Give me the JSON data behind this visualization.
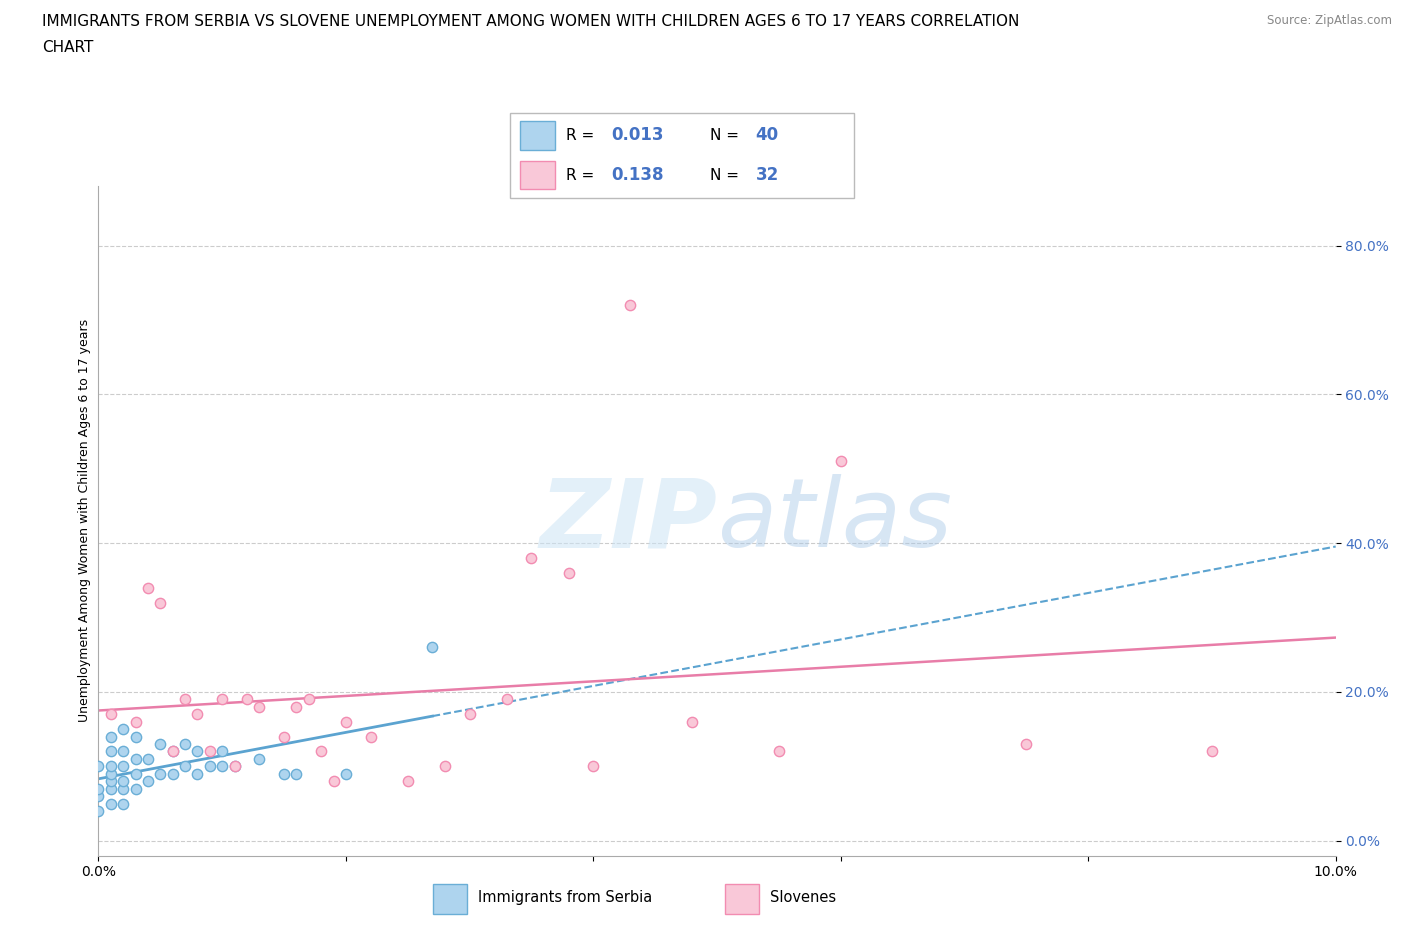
{
  "title_line1": "IMMIGRANTS FROM SERBIA VS SLOVENE UNEMPLOYMENT AMONG WOMEN WITH CHILDREN AGES 6 TO 17 YEARS CORRELATION",
  "title_line2": "CHART",
  "source": "Source: ZipAtlas.com",
  "ylabel": "Unemployment Among Women with Children Ages 6 to 17 years",
  "xlim": [
    0.0,
    0.1
  ],
  "ylim": [
    -0.02,
    0.88
  ],
  "x_ticks": [
    0.0,
    0.02,
    0.04,
    0.06,
    0.08,
    0.1
  ],
  "x_tick_labels": [
    "0.0%",
    "",
    "",
    "",
    "",
    "10.0%"
  ],
  "y_ticks": [
    0.0,
    0.2,
    0.4,
    0.6,
    0.8
  ],
  "y_tick_labels": [
    "0.0%",
    "20.0%",
    "40.0%",
    "60.0%",
    "80.0%"
  ],
  "serbia_color": "#6aaed6",
  "serbia_fill": "#aed4ee",
  "slovene_color": "#f28cb1",
  "slovene_fill": "#f9c8d8",
  "regression_blue": "#5ba3d0",
  "regression_pink": "#e87da8",
  "R_serbia": 0.013,
  "N_serbia": 40,
  "R_slovene": 0.138,
  "N_slovene": 32,
  "legend_labels": [
    "Immigrants from Serbia",
    "Slovenes"
  ],
  "watermark_zip": "ZIP",
  "watermark_atlas": "atlas",
  "serbia_x": [
    0.0,
    0.0,
    0.0,
    0.0,
    0.001,
    0.001,
    0.001,
    0.001,
    0.001,
    0.001,
    0.001,
    0.002,
    0.002,
    0.002,
    0.002,
    0.002,
    0.002,
    0.003,
    0.003,
    0.003,
    0.003,
    0.004,
    0.004,
    0.005,
    0.005,
    0.006,
    0.006,
    0.007,
    0.007,
    0.008,
    0.008,
    0.009,
    0.01,
    0.01,
    0.011,
    0.013,
    0.015,
    0.016,
    0.02,
    0.027
  ],
  "serbia_y": [
    0.04,
    0.06,
    0.07,
    0.1,
    0.05,
    0.07,
    0.08,
    0.09,
    0.1,
    0.12,
    0.14,
    0.05,
    0.07,
    0.08,
    0.1,
    0.12,
    0.15,
    0.07,
    0.09,
    0.11,
    0.14,
    0.08,
    0.11,
    0.09,
    0.13,
    0.09,
    0.12,
    0.1,
    0.13,
    0.09,
    0.12,
    0.1,
    0.1,
    0.12,
    0.1,
    0.11,
    0.09,
    0.09,
    0.09,
    0.26
  ],
  "slovene_x": [
    0.001,
    0.003,
    0.004,
    0.005,
    0.006,
    0.007,
    0.008,
    0.009,
    0.01,
    0.011,
    0.012,
    0.013,
    0.015,
    0.016,
    0.017,
    0.018,
    0.019,
    0.02,
    0.022,
    0.025,
    0.028,
    0.03,
    0.033,
    0.035,
    0.038,
    0.04,
    0.043,
    0.048,
    0.055,
    0.06,
    0.075,
    0.09
  ],
  "slovene_y": [
    0.17,
    0.16,
    0.34,
    0.32,
    0.12,
    0.19,
    0.17,
    0.12,
    0.19,
    0.1,
    0.19,
    0.18,
    0.14,
    0.18,
    0.19,
    0.12,
    0.08,
    0.16,
    0.14,
    0.08,
    0.1,
    0.17,
    0.19,
    0.38,
    0.36,
    0.1,
    0.72,
    0.16,
    0.12,
    0.51,
    0.13,
    0.12
  ],
  "grid_color": "#cccccc",
  "background_color": "#ffffff",
  "title_fontsize": 11,
  "axis_label_fontsize": 9,
  "tick_fontsize": 10,
  "blue_text": "#4472c4"
}
